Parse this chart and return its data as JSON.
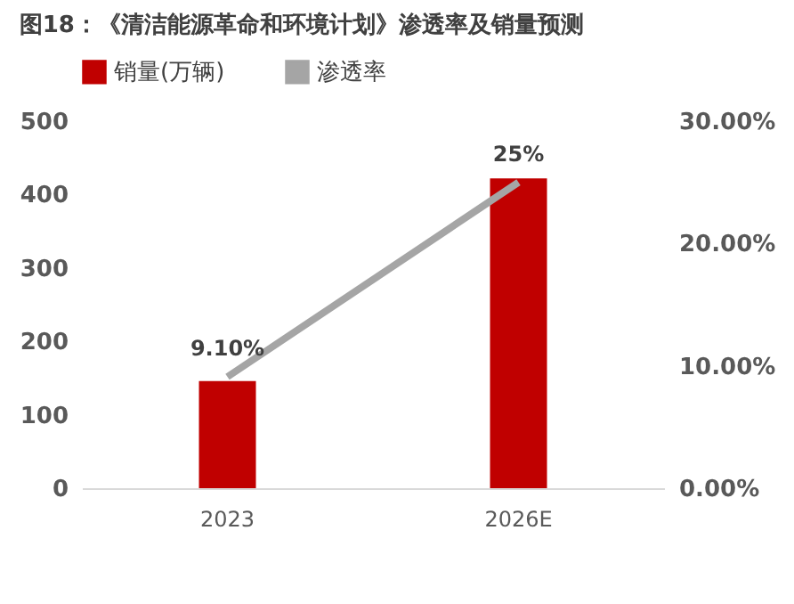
{
  "chart_data": {
    "type": "bar",
    "title": "图18：《清洁能源革命和环境计划》渗透率及销量预测",
    "categories": [
      "2023",
      "2026E"
    ],
    "series": [
      {
        "name": "销量(万辆)",
        "color": "#c00000",
        "values": [
          146,
          422
        ]
      },
      {
        "name": "渗透率",
        "type": "line",
        "axis": "y2",
        "color": "#a5a5a5",
        "values": [
          9.1,
          25
        ],
        "value_labels": [
          "9.10%",
          "25%"
        ]
      }
    ],
    "ylim": [
      0,
      500
    ],
    "yticks": [
      0,
      100,
      200,
      300,
      400,
      500
    ],
    "y2lim": [
      0,
      30
    ],
    "y2ticks": [
      {
        "value": 0,
        "label": "0.00%"
      },
      {
        "value": 10,
        "label": "10.00%"
      },
      {
        "value": 20,
        "label": "20.00%"
      },
      {
        "value": 30,
        "label": "30.00%"
      }
    ],
    "legend": "top",
    "grid": false,
    "marker": "none"
  }
}
